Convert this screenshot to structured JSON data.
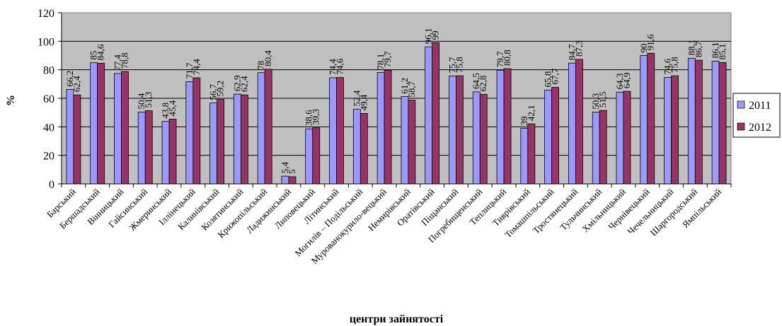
{
  "chart_data": {
    "type": "bar",
    "xlabel": "центри зайнятості",
    "ylabel": "%",
    "ylim": [
      0,
      120
    ],
    "yticks": [
      0,
      20,
      40,
      60,
      80,
      100,
      120
    ],
    "grid": true,
    "legend_position": "right",
    "categories": [
      "Барський",
      "Бершадський",
      "Вінницький",
      "Гайсинський",
      "Жмеринський",
      "Іллінецький",
      "Калинівський",
      "Козятинський",
      "Крижопільський",
      "Ладижинський",
      "Липовецький",
      "Літинський",
      "Могилів – Подільський",
      "Мурованокурило-вецький",
      "Немирівський",
      "Оратівський",
      "Піщанський",
      "Погребищенський",
      "Теплицький",
      "Тиврівський",
      "Томашпільський",
      "Тростянецький",
      "Тульчинський",
      "Хмільницький",
      "Чернівецький",
      "Чечельницький",
      "Шаргородський",
      "Ямпільський"
    ],
    "series": [
      {
        "name": "2011",
        "color": "#9999ff",
        "values": [
          66.2,
          85,
          77.4,
          50.4,
          43.8,
          71.7,
          56.7,
          62.9,
          78,
          5.4,
          38.6,
          74.4,
          52.4,
          78.1,
          61.2,
          96.1,
          75.7,
          64.5,
          79.7,
          39,
          65.8,
          84.7,
          50.3,
          64.3,
          90,
          74.6,
          88.1,
          86.1
        ],
        "labels": [
          "66,2",
          "85",
          "77,4",
          "50,4",
          "43,8",
          "71,7",
          "56,7",
          "62,9",
          "78",
          "5,4",
          "38,6",
          "74,4",
          "52,4",
          "78,1",
          "61,2",
          "96,1",
          "75,7",
          "64,5",
          "79,7",
          "39",
          "65,8",
          "84,7",
          "50,3",
          "64,3",
          "90",
          "74,6",
          "88,1",
          "86,1"
        ]
      },
      {
        "name": "2012",
        "color": "#993366",
        "values": [
          62.4,
          84.6,
          78.8,
          51.3,
          45.4,
          74.4,
          59.2,
          62.4,
          80.4,
          5,
          39.3,
          74.6,
          49.4,
          79.7,
          58.7,
          99,
          75.8,
          62.8,
          80.8,
          42.1,
          67.7,
          87.3,
          51.5,
          64.9,
          91.6,
          75.8,
          86.7,
          85.1
        ],
        "labels": [
          "62,4",
          "84,6",
          "78,8",
          "51,3",
          "45,4",
          "74,4",
          "59,2",
          "62,4",
          "80,4",
          "5",
          "39,3",
          "74,6",
          "49,4",
          "79,7",
          "58,7",
          "99",
          "75,8",
          "62,8",
          "80,8",
          "42,1",
          "67,7",
          "87,3",
          "51,5",
          "64,9",
          "91,6",
          "75,8",
          "86,7",
          "85,1"
        ]
      }
    ],
    "plot_background": "#c0c0c0"
  }
}
